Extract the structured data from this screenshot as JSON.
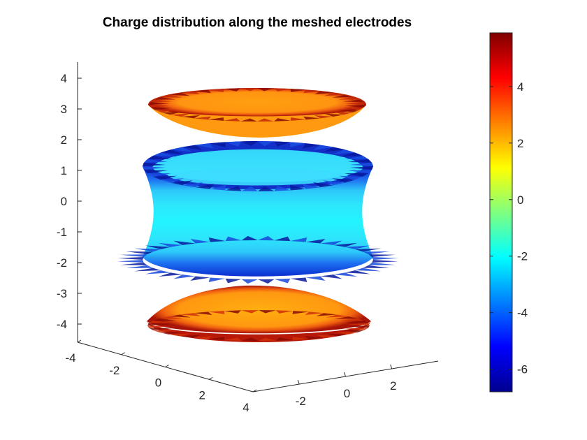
{
  "chart_data": {
    "type": "3d-surface",
    "title": "Charge distribution along the meshed electrodes",
    "xlabel": "",
    "ylabel": "",
    "zlabel": "",
    "xlim": [
      -4,
      4
    ],
    "ylim": [
      -4,
      4
    ],
    "zlim": [
      -4.5,
      4.5
    ],
    "x_ticks": [
      "-4",
      "-2",
      "0",
      "2",
      "4"
    ],
    "y_ticks": [
      "-2",
      "0",
      "2"
    ],
    "z_ticks": [
      "4",
      "3",
      "2",
      "1",
      "0",
      "-1",
      "-2",
      "-3",
      "-4"
    ],
    "colormap": "jet",
    "colorbar": {
      "limits": [
        -6.8,
        5.9
      ],
      "ticks": [
        "4",
        "2",
        "0",
        "-2",
        "-4",
        "-6"
      ]
    },
    "surfaces": [
      {
        "name": "top electrode",
        "shape": "disc",
        "z": 3.2,
        "radius": 3.7,
        "center_charge": 2.5,
        "rim_charge": 5.8
      },
      {
        "name": "ring electrode",
        "shape": "hyperboloid",
        "z_range": [
          -1.9,
          1.9
        ],
        "radius_ends": 3.8,
        "radius_waist": 3.0,
        "center_charge": -2.3,
        "rim_charge": -6.5
      },
      {
        "name": "bottom electrode",
        "shape": "disc",
        "z": -3.8,
        "radius": 3.7,
        "center_charge": 2.5,
        "rim_charge": 5.8
      }
    ]
  }
}
